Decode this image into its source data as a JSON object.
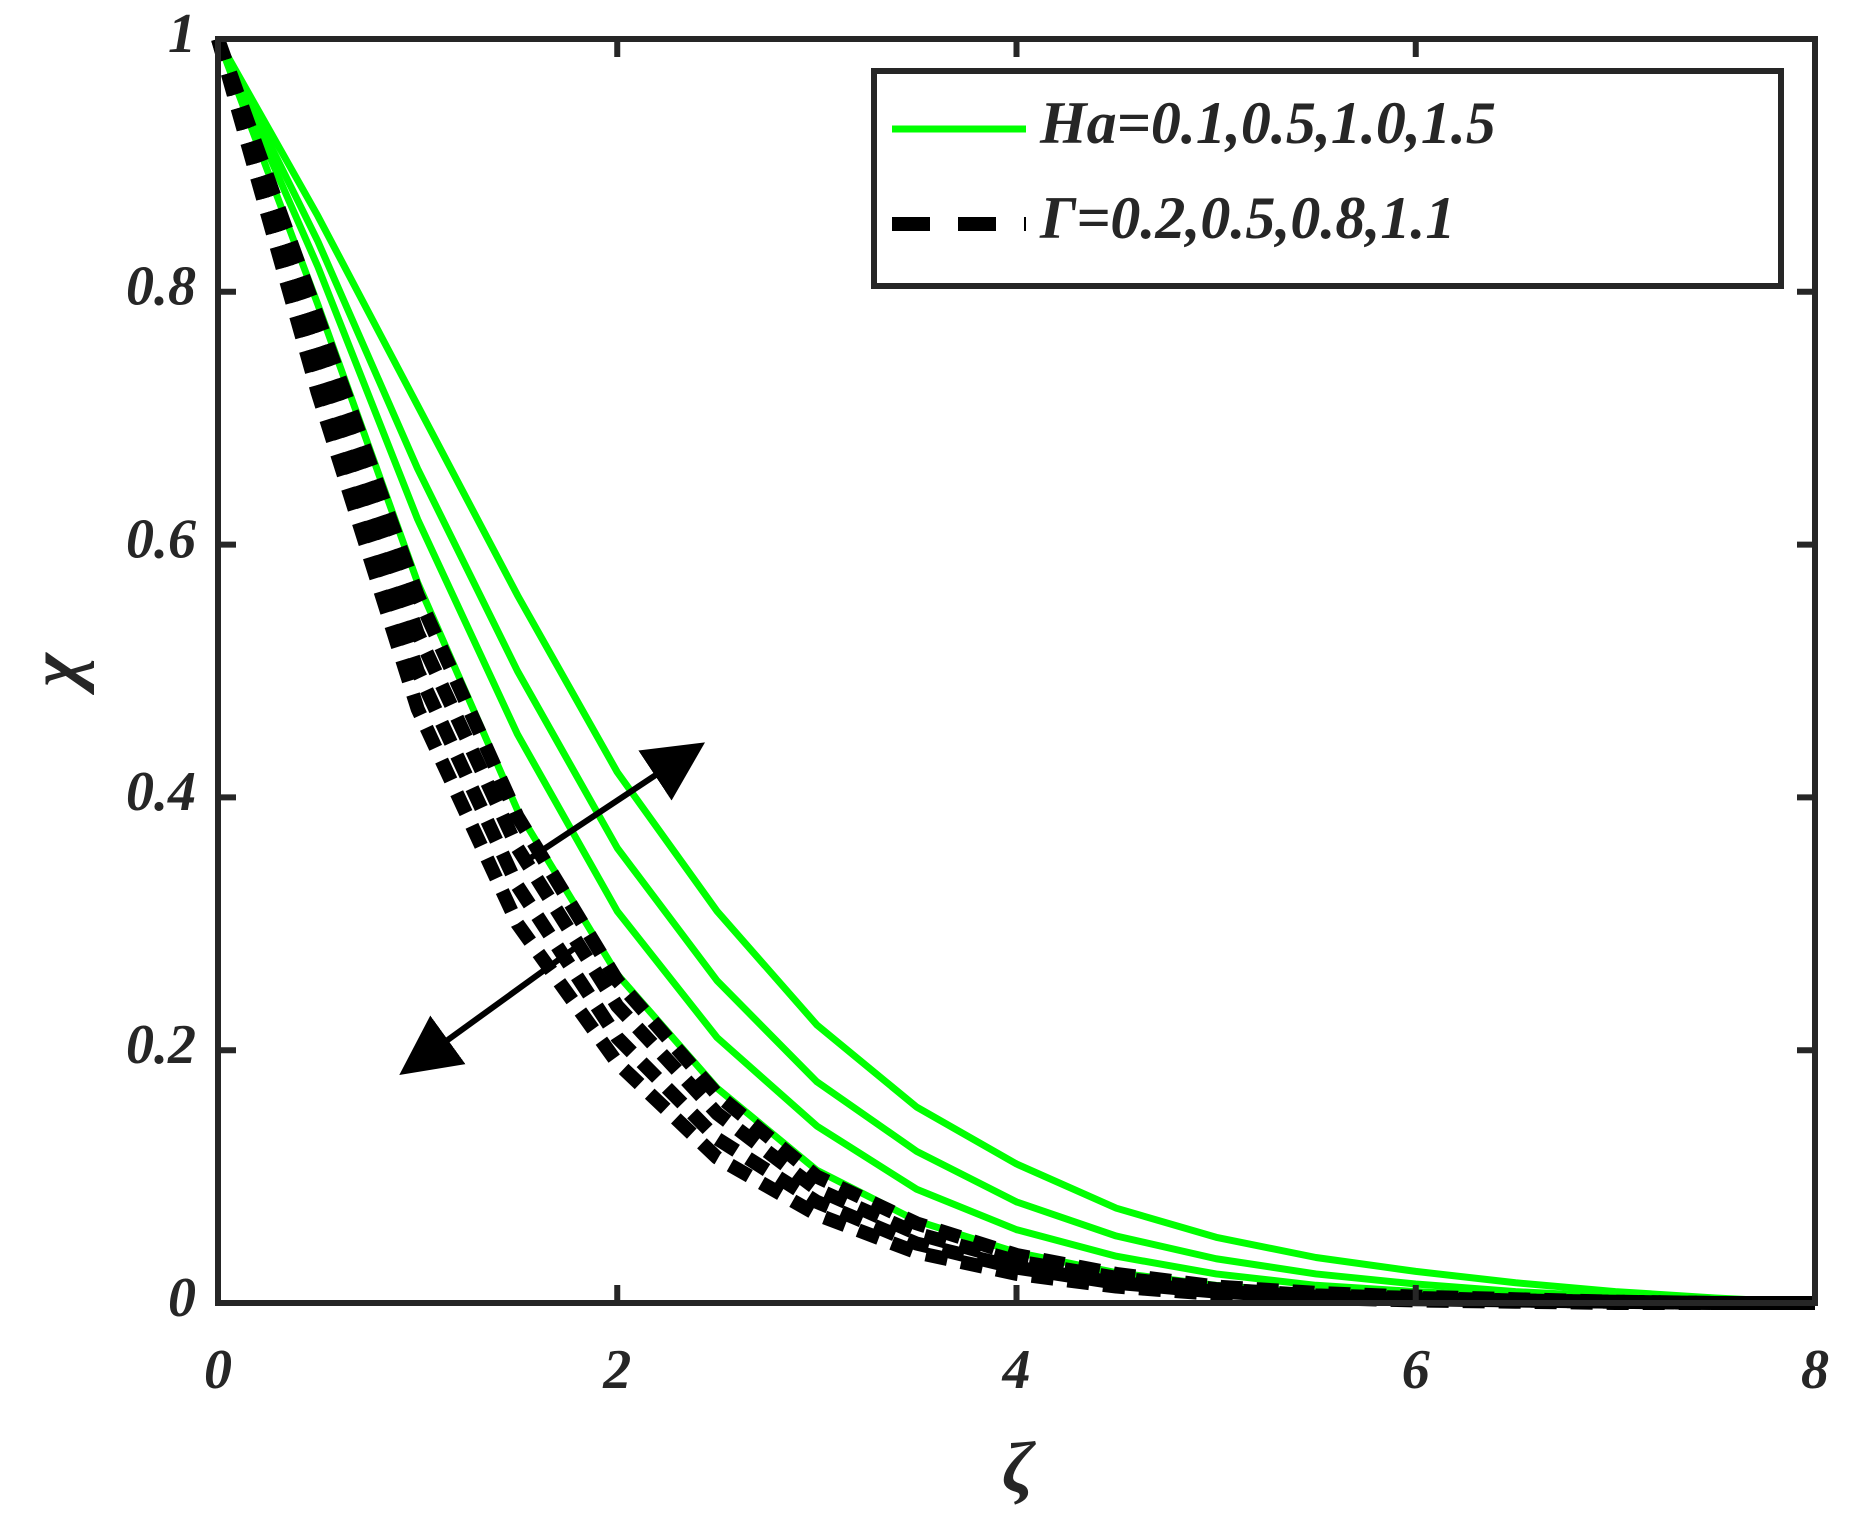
{
  "chart_data": {
    "type": "line",
    "x_label": "ζ",
    "y_label": "χ",
    "x": [
      0,
      0.5,
      1,
      1.5,
      2,
      2.5,
      3,
      3.5,
      4,
      4.5,
      5,
      5.5,
      6,
      6.5,
      7,
      7.5,
      8
    ],
    "xlim": [
      0,
      8
    ],
    "ylim": [
      0,
      1
    ],
    "xticks": [
      0,
      2,
      4,
      6,
      8
    ],
    "yticks": [
      0,
      0.2,
      0.4,
      0.6,
      0.8,
      1
    ],
    "legend_position": "upper right",
    "series": [
      {
        "name": "Ha=0.1,0.5,1.0,1.5",
        "color": "#00ff00",
        "style": "solid",
        "values": [
          1,
          0.79,
          0.57,
          0.39,
          0.26,
          0.17,
          0.105,
          0.065,
          0.04,
          0.024,
          0.014,
          0.008,
          0.005,
          0.003,
          0.001,
          0.0005,
          0
        ]
      },
      {
        "color": "#00ff00",
        "style": "solid",
        "values": [
          1,
          0.82,
          0.62,
          0.45,
          0.31,
          0.21,
          0.14,
          0.09,
          0.058,
          0.037,
          0.023,
          0.014,
          0.009,
          0.005,
          0.003,
          0.001,
          0
        ]
      },
      {
        "color": "#00ff00",
        "style": "solid",
        "values": [
          1,
          0.84,
          0.66,
          0.5,
          0.36,
          0.255,
          0.175,
          0.12,
          0.08,
          0.053,
          0.035,
          0.023,
          0.015,
          0.009,
          0.005,
          0.002,
          0
        ]
      },
      {
        "color": "#00ff00",
        "style": "solid",
        "values": [
          1,
          0.86,
          0.71,
          0.56,
          0.42,
          0.31,
          0.22,
          0.155,
          0.11,
          0.075,
          0.052,
          0.036,
          0.025,
          0.016,
          0.009,
          0.004,
          0
        ]
      },
      {
        "name": "Γ=0.2,0.5,0.8,1.1",
        "color": "#000000",
        "style": "dashed",
        "values": [
          1,
          0.72,
          0.47,
          0.3,
          0.19,
          0.115,
          0.07,
          0.04,
          0.023,
          0.013,
          0.007,
          0.004,
          0.002,
          0.001,
          0,
          0,
          0
        ]
      },
      {
        "color": "#000000",
        "style": "dashed",
        "values": [
          1,
          0.74,
          0.5,
          0.33,
          0.21,
          0.13,
          0.08,
          0.047,
          0.028,
          0.016,
          0.009,
          0.005,
          0.003,
          0.002,
          0.001,
          0,
          0
        ]
      },
      {
        "color": "#000000",
        "style": "dashed",
        "values": [
          1,
          0.76,
          0.53,
          0.36,
          0.235,
          0.15,
          0.09,
          0.055,
          0.033,
          0.02,
          0.011,
          0.006,
          0.004,
          0.002,
          0.001,
          0,
          0
        ]
      },
      {
        "color": "#000000",
        "style": "dashed",
        "values": [
          1,
          0.78,
          0.56,
          0.385,
          0.255,
          0.165,
          0.1,
          0.063,
          0.038,
          0.023,
          0.013,
          0.008,
          0.005,
          0.003,
          0.001,
          0,
          0
        ]
      }
    ]
  }
}
